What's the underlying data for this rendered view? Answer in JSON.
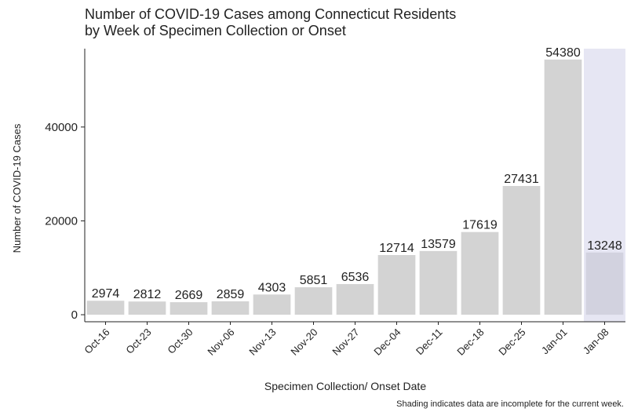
{
  "chart_data": {
    "type": "bar",
    "title": [
      "Number of COVID-19 Cases among Connecticut Residents",
      "by Week of Specimen Collection or Onset"
    ],
    "x_label": "Specimen Collection/ Onset Date",
    "y_label": "Number of COVID-19 Cases",
    "footnote": "Shading indicates data are incomplete for the current week.",
    "categories": [
      "Oct-16",
      "Oct-23",
      "Oct-30",
      "Nov-06",
      "Nov-13",
      "Nov-20",
      "Nov-27",
      "Dec-04",
      "Dec-11",
      "Dec-18",
      "Dec-25",
      "Jan-01",
      "Jan-08"
    ],
    "values": [
      2974,
      2812,
      2669,
      2859,
      4303,
      5851,
      6536,
      12714,
      13579,
      17619,
      27431,
      54380,
      13248
    ],
    "colors": [
      "#d3d3d3",
      "#d3d3d3",
      "#d3d3d3",
      "#d3d3d3",
      "#d3d3d3",
      "#d3d3d3",
      "#d3d3d3",
      "#d3d3d3",
      "#d3d3d3",
      "#d3d3d3",
      "#d3d3d3",
      "#d3d3d3",
      "#d2d2df"
    ],
    "label_colors": [
      "#111111",
      "#111111",
      "#111111",
      "#111111",
      "#111111",
      "#111111",
      "#111111",
      "#111111",
      "#111111",
      "#111111",
      "#111111",
      "#111111",
      "#77779a"
    ],
    "shade": {
      "index": 12,
      "color": "#e6e6f3"
    },
    "ylim": [
      -1500,
      56700
    ],
    "yticks": [
      0,
      20000,
      40000
    ],
    "grid": false
  }
}
